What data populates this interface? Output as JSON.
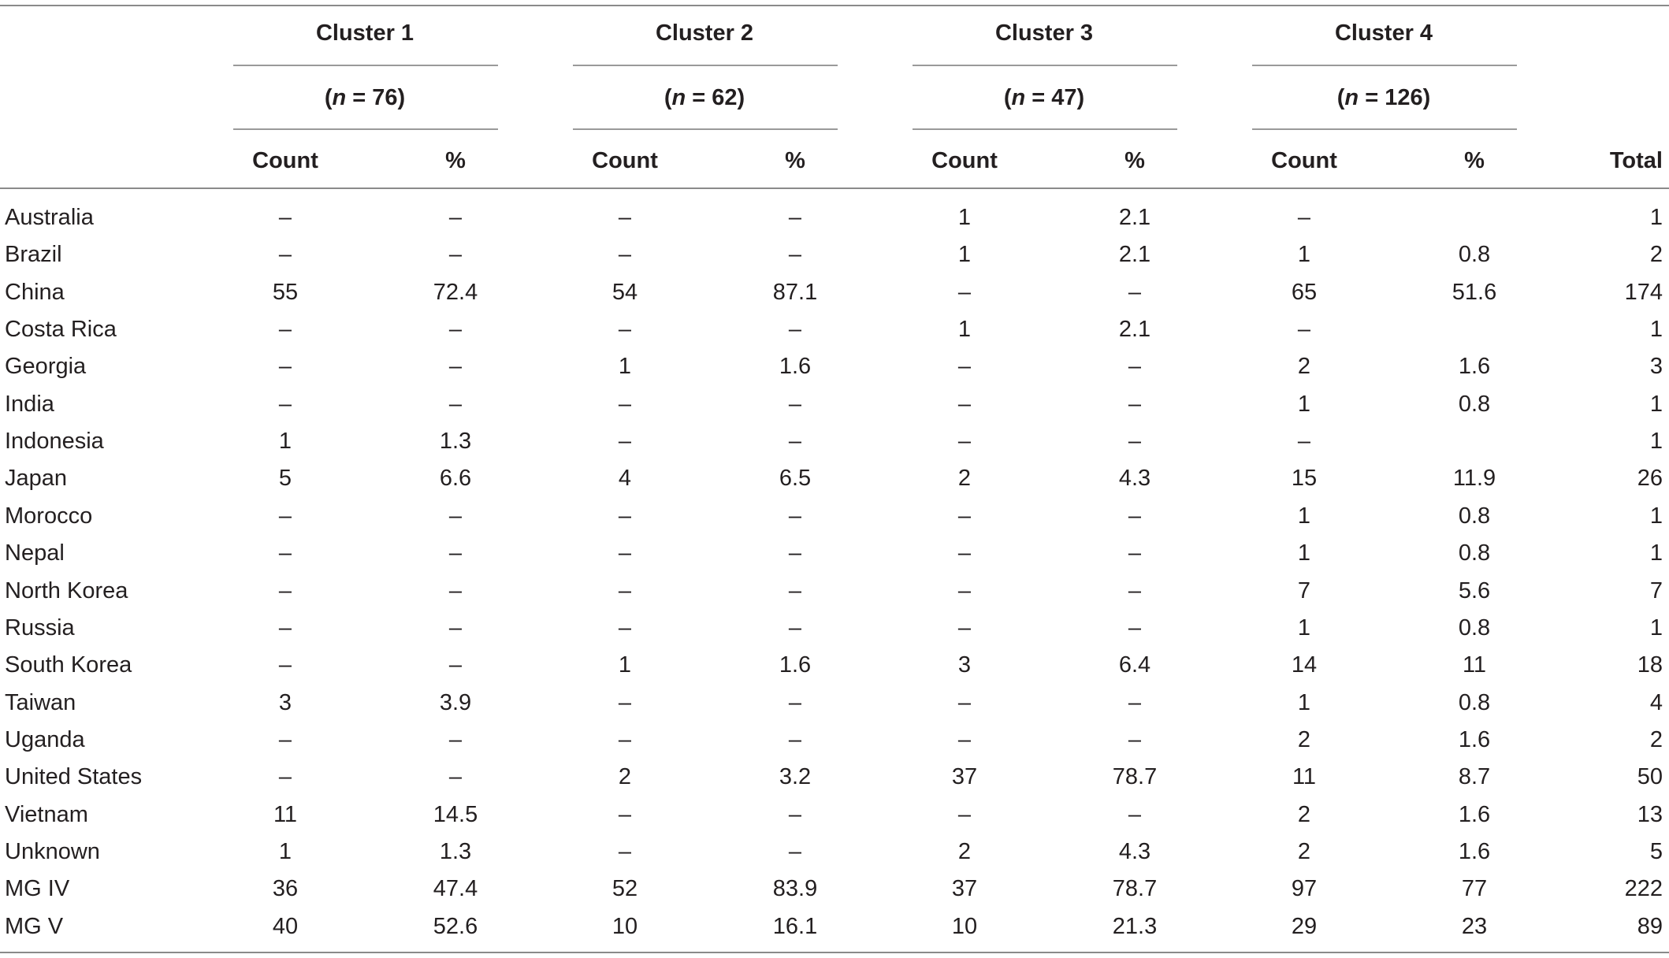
{
  "table": {
    "clusters": [
      {
        "name": "Cluster 1",
        "n_prefix": "(",
        "n_var": "n",
        "n_suffix": " = 76)"
      },
      {
        "name": "Cluster 2",
        "n_prefix": "(",
        "n_var": "n",
        "n_suffix": " = 62)"
      },
      {
        "name": "Cluster 3",
        "n_prefix": "(",
        "n_var": "n",
        "n_suffix": " = 47)"
      },
      {
        "name": "Cluster 4",
        "n_prefix": "(",
        "n_var": "n",
        "n_suffix": " = 126)"
      }
    ],
    "count_label": "Count",
    "percent_label": "%",
    "total_label": "Total",
    "rows": [
      {
        "label": "Australia",
        "values": [
          "–",
          "–",
          "–",
          "–",
          "1",
          "2.1",
          "–",
          "",
          "1"
        ]
      },
      {
        "label": "Brazil",
        "values": [
          "–",
          "–",
          "–",
          "–",
          "1",
          "2.1",
          "1",
          "0.8",
          "2"
        ]
      },
      {
        "label": "China",
        "values": [
          "55",
          "72.4",
          "54",
          "87.1",
          "–",
          "–",
          "65",
          "51.6",
          "174"
        ]
      },
      {
        "label": "Costa Rica",
        "values": [
          "–",
          "–",
          "–",
          "–",
          "1",
          "2.1",
          "–",
          "",
          "1"
        ]
      },
      {
        "label": "Georgia",
        "values": [
          "–",
          "–",
          "1",
          "1.6",
          "–",
          "–",
          "2",
          "1.6",
          "3"
        ]
      },
      {
        "label": "India",
        "values": [
          "–",
          "–",
          "–",
          "–",
          "–",
          "–",
          "1",
          "0.8",
          "1"
        ]
      },
      {
        "label": "Indonesia",
        "values": [
          "1",
          "1.3",
          "–",
          "–",
          "–",
          "–",
          "–",
          "",
          "1"
        ]
      },
      {
        "label": "Japan",
        "values": [
          "5",
          "6.6",
          "4",
          "6.5",
          "2",
          "4.3",
          "15",
          "11.9",
          "26"
        ]
      },
      {
        "label": "Morocco",
        "values": [
          "–",
          "–",
          "–",
          "–",
          "–",
          "–",
          "1",
          "0.8",
          "1"
        ]
      },
      {
        "label": "Nepal",
        "values": [
          "–",
          "–",
          "–",
          "–",
          "–",
          "–",
          "1",
          "0.8",
          "1"
        ]
      },
      {
        "label": "North Korea",
        "values": [
          "–",
          "–",
          "–",
          "–",
          "–",
          "–",
          "7",
          "5.6",
          "7"
        ]
      },
      {
        "label": "Russia",
        "values": [
          "–",
          "–",
          "–",
          "–",
          "–",
          "–",
          "1",
          "0.8",
          "1"
        ]
      },
      {
        "label": "South Korea",
        "values": [
          "–",
          "–",
          "1",
          "1.6",
          "3",
          "6.4",
          "14",
          "11",
          "18"
        ]
      },
      {
        "label": "Taiwan",
        "values": [
          "3",
          "3.9",
          "–",
          "–",
          "–",
          "–",
          "1",
          "0.8",
          "4"
        ]
      },
      {
        "label": "Uganda",
        "values": [
          "–",
          "–",
          "–",
          "–",
          "–",
          "–",
          "2",
          "1.6",
          "2"
        ]
      },
      {
        "label": "United States",
        "values": [
          "–",
          "–",
          "2",
          "3.2",
          "37",
          "78.7",
          "11",
          "8.7",
          "50"
        ]
      },
      {
        "label": "Vietnam",
        "values": [
          "11",
          "14.5",
          "–",
          "–",
          "–",
          "–",
          "2",
          "1.6",
          "13"
        ]
      },
      {
        "label": "Unknown",
        "values": [
          "1",
          "1.3",
          "–",
          "–",
          "2",
          "4.3",
          "2",
          "1.6",
          "5"
        ]
      },
      {
        "label": "MG IV",
        "values": [
          "36",
          "47.4",
          "52",
          "83.9",
          "37",
          "78.7",
          "97",
          "77",
          "222"
        ]
      },
      {
        "label": "MG V",
        "values": [
          "40",
          "52.6",
          "10",
          "16.1",
          "10",
          "21.3",
          "29",
          "23",
          "89"
        ]
      }
    ]
  }
}
